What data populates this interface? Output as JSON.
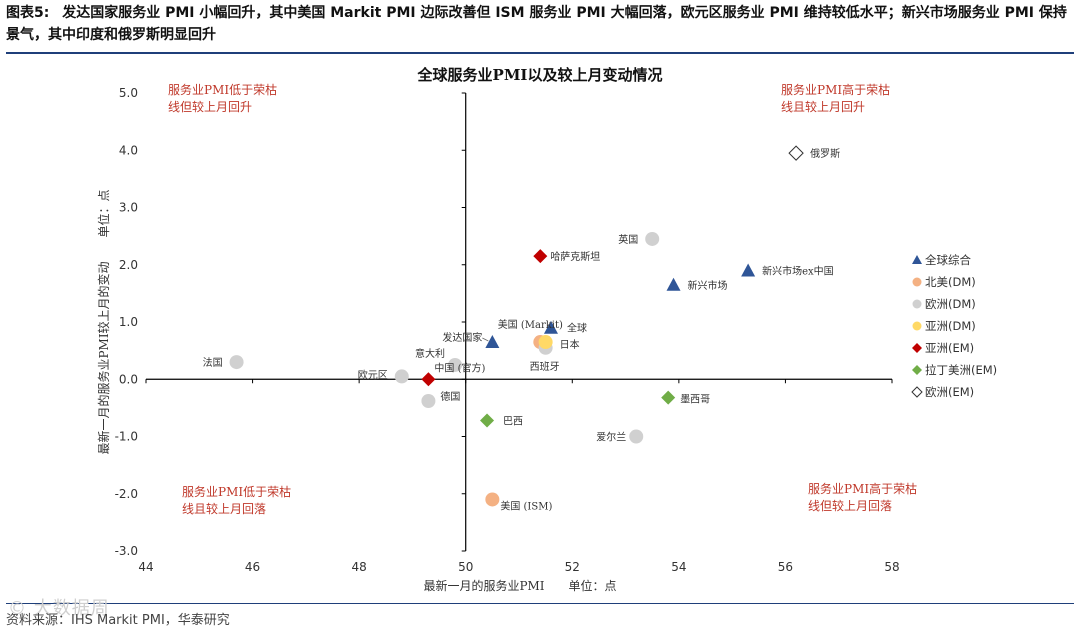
{
  "header": {
    "figure_label": "图表5:",
    "title": "发达国家服务业 PMI 小幅回升，其中美国 Markit PMI 边际改善但 ISM 服务业 PMI 大幅回落，欧元区服务业 PMI 维持较低水平；新兴市场服务业 PMI 保持景气，其中印度和俄罗斯明显回升"
  },
  "footer": {
    "source": "资料来源：IHS Markit PMI，华泰研究",
    "watermark": "© 大数据周"
  },
  "colors": {
    "rule": "#1f3f7a",
    "quadrant_text": "#c0392b",
    "global": "#2f5597",
    "north_america": "#f4b183",
    "europe": "#d0d0d0",
    "asia_dm": "#ffd966",
    "asia_em": "#c00000",
    "latam_em": "#70ad47",
    "europe_em": "#ffffff"
  },
  "chart_data": {
    "type": "scatter",
    "title": "全球服务业PMI以及较上月变动情况",
    "xlabel": "最新一月的服务业PMI　　单位：点",
    "ylabel": "最新一月的服务业PMI较上月的变动　　单位：点",
    "xlim": [
      44,
      58
    ],
    "ylim": [
      -3.0,
      5.0
    ],
    "x_ticks": [
      "44",
      "46",
      "48",
      "50",
      "52",
      "54",
      "56",
      "58"
    ],
    "y_ticks": [
      "-3.0",
      "-2.0",
      "-1.0",
      "0.0",
      "1.0",
      "2.0",
      "3.0",
      "4.0",
      "5.0"
    ],
    "cross_at": {
      "x": 50,
      "y": 0
    },
    "legend_position": "right",
    "quadrant_labels": {
      "top_left": [
        "服务业PMI低于荣枯",
        "线但较上月回升"
      ],
      "top_right": [
        "服务业PMI高于荣枯",
        "线且较上月回升"
      ],
      "bottom_left": [
        "服务业PMI低于荣枯",
        "线且较上月回落"
      ],
      "bottom_right": [
        "服务业PMI高于荣枯",
        "线但较上月回落"
      ]
    },
    "series": [
      {
        "name": "全球综合",
        "marker": "triangle",
        "color": "#2f5597",
        "points": [
          {
            "label": "全球",
            "x": 51.6,
            "y": 0.9
          },
          {
            "label": "发达国家",
            "x": 50.5,
            "y": 0.65
          },
          {
            "label": "新兴市场",
            "x": 53.9,
            "y": 1.65
          },
          {
            "label": "新兴市场ex中国",
            "x": 55.3,
            "y": 1.9
          }
        ]
      },
      {
        "name": "北美(DM)",
        "marker": "circle",
        "color": "#f4b183",
        "points": [
          {
            "label": "美国 (Markit)",
            "x": 51.4,
            "y": 0.65
          },
          {
            "label": "美国 (ISM)",
            "x": 50.5,
            "y": -2.1
          }
        ]
      },
      {
        "name": "欧洲(DM)",
        "marker": "circle",
        "color": "#d0d0d0",
        "points": [
          {
            "label": "英国",
            "x": 53.5,
            "y": 2.45
          },
          {
            "label": "法国",
            "x": 45.7,
            "y": 0.3
          },
          {
            "label": "欧元区",
            "x": 48.8,
            "y": 0.05
          },
          {
            "label": "德国",
            "x": 49.3,
            "y": -0.38
          },
          {
            "label": "意大利",
            "x": 49.8,
            "y": 0.25
          },
          {
            "label": "西班牙",
            "x": 51.5,
            "y": 0.55
          },
          {
            "label": "爱尔兰",
            "x": 53.2,
            "y": -1.0
          }
        ]
      },
      {
        "name": "亚洲(DM)",
        "marker": "circle",
        "color": "#ffd966",
        "points": [
          {
            "label": "日本",
            "x": 51.5,
            "y": 0.65
          }
        ]
      },
      {
        "name": "亚洲(EM)",
        "marker": "diamond",
        "color": "#c00000",
        "points": [
          {
            "label": "哈萨克斯坦",
            "x": 51.4,
            "y": 2.15
          },
          {
            "label": "中国 (官方)",
            "x": 49.3,
            "y": 0.0
          }
        ]
      },
      {
        "name": "拉丁美洲(EM)",
        "marker": "diamond",
        "color": "#70ad47",
        "points": [
          {
            "label": "墨西哥",
            "x": 53.8,
            "y": -0.32
          },
          {
            "label": "巴西",
            "x": 50.4,
            "y": -0.72
          }
        ]
      },
      {
        "name": "欧洲(EM)",
        "marker": "diamond-open",
        "color": "#ffffff",
        "points": [
          {
            "label": "俄罗斯",
            "x": 56.2,
            "y": 3.95
          }
        ]
      }
    ]
  }
}
